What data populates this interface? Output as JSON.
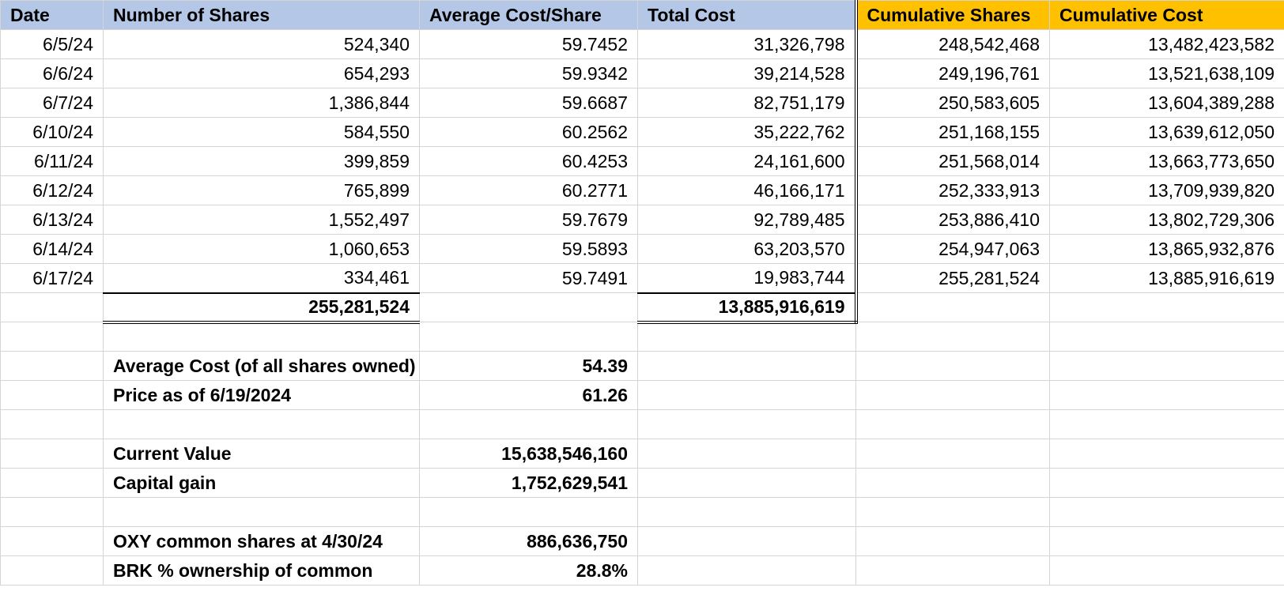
{
  "headers": {
    "date": "Date",
    "shares": "Number of Shares",
    "avg_cost": "Average Cost/Share",
    "total_cost": "Total Cost",
    "cum_shares": "Cumulative Shares",
    "cum_cost": "Cumulative Cost"
  },
  "rows": [
    {
      "date": "6/5/24",
      "shares": "524,340",
      "avg_cost": "59.7452",
      "total_cost": "31,326,798",
      "cum_shares": "248,542,468",
      "cum_cost": "13,482,423,582"
    },
    {
      "date": "6/6/24",
      "shares": "654,293",
      "avg_cost": "59.9342",
      "total_cost": "39,214,528",
      "cum_shares": "249,196,761",
      "cum_cost": "13,521,638,109"
    },
    {
      "date": "6/7/24",
      "shares": "1,386,844",
      "avg_cost": "59.6687",
      "total_cost": "82,751,179",
      "cum_shares": "250,583,605",
      "cum_cost": "13,604,389,288"
    },
    {
      "date": "6/10/24",
      "shares": "584,550",
      "avg_cost": "60.2562",
      "total_cost": "35,222,762",
      "cum_shares": "251,168,155",
      "cum_cost": "13,639,612,050"
    },
    {
      "date": "6/11/24",
      "shares": "399,859",
      "avg_cost": "60.4253",
      "total_cost": "24,161,600",
      "cum_shares": "251,568,014",
      "cum_cost": "13,663,773,650"
    },
    {
      "date": "6/12/24",
      "shares": "765,899",
      "avg_cost": "60.2771",
      "total_cost": "46,166,171",
      "cum_shares": "252,333,913",
      "cum_cost": "13,709,939,820"
    },
    {
      "date": "6/13/24",
      "shares": "1,552,497",
      "avg_cost": "59.7679",
      "total_cost": "92,789,485",
      "cum_shares": "253,886,410",
      "cum_cost": "13,802,729,306"
    },
    {
      "date": "6/14/24",
      "shares": "1,060,653",
      "avg_cost": "59.5893",
      "total_cost": "63,203,570",
      "cum_shares": "254,947,063",
      "cum_cost": "13,865,932,876"
    },
    {
      "date": "6/17/24",
      "shares": "334,461",
      "avg_cost": "59.7491",
      "total_cost": "19,983,744",
      "cum_shares": "255,281,524",
      "cum_cost": "13,885,916,619"
    }
  ],
  "totals": {
    "shares": "255,281,524",
    "total_cost": "13,885,916,619"
  },
  "summary": {
    "avg_cost_label": "Average Cost (of all shares owned)",
    "avg_cost_value": "54.39",
    "price_label": "Price as of 6/19/2024",
    "price_value": "61.26",
    "current_value_label": "Current Value",
    "current_value_value": "15,638,546,160",
    "capital_gain_label": "Capital gain",
    "capital_gain_value": "1,752,629,541",
    "oxy_shares_label": "OXY common shares at 4/30/24",
    "oxy_shares_value": "886,636,750",
    "brk_pct_label": "BRK % ownership of common",
    "brk_pct_value": "28.8%"
  },
  "colors": {
    "header_blue": "#b4c7e7",
    "header_highlight": "#ffc000"
  }
}
